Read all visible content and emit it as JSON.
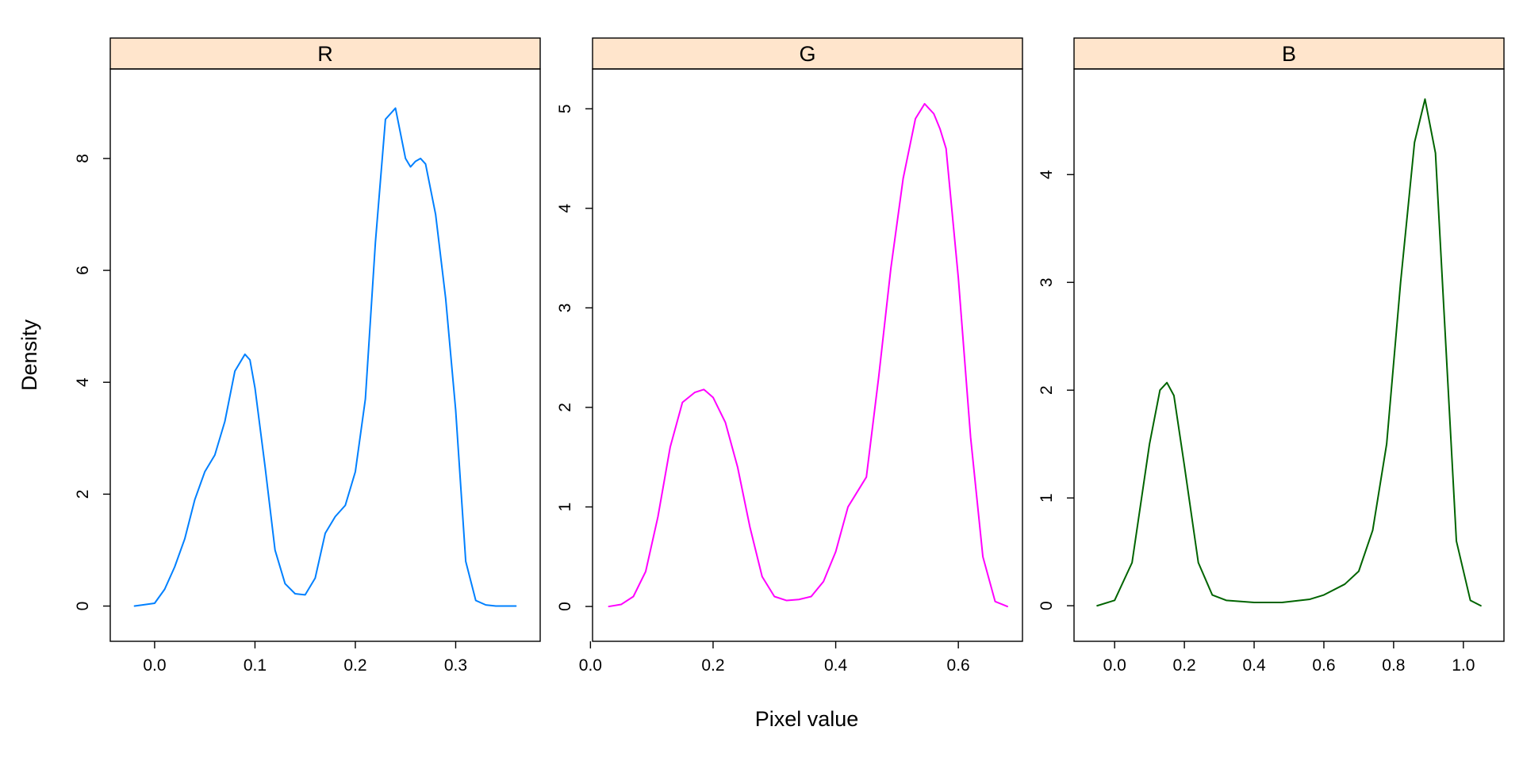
{
  "chart_data": {
    "type": "line",
    "xlabel": "Pixel value",
    "ylabel": "Density",
    "panels": [
      {
        "name": "R",
        "color": "#0080ff",
        "xlim": [
          -0.0442,
          0.3842
        ],
        "ylim": [
          -0.63,
          9.6
        ],
        "xticks": [
          0.0,
          0.1,
          0.2,
          0.3
        ],
        "xtick_labels": [
          "0.0",
          "0.1",
          "0.2",
          "0.3"
        ],
        "yticks": [
          0,
          2,
          4,
          6,
          8
        ],
        "ytick_labels": [
          "0",
          "2",
          "4",
          "6",
          "8"
        ],
        "x": [
          -0.02,
          0.0,
          0.01,
          0.02,
          0.03,
          0.04,
          0.05,
          0.06,
          0.07,
          0.08,
          0.09,
          0.095,
          0.1,
          0.11,
          0.12,
          0.13,
          0.14,
          0.15,
          0.16,
          0.17,
          0.18,
          0.19,
          0.2,
          0.21,
          0.22,
          0.23,
          0.24,
          0.25,
          0.255,
          0.26,
          0.265,
          0.27,
          0.28,
          0.29,
          0.3,
          0.31,
          0.32,
          0.33,
          0.34,
          0.36
        ],
        "y": [
          0.0,
          0.05,
          0.3,
          0.7,
          1.2,
          1.9,
          2.4,
          2.7,
          3.3,
          4.2,
          4.5,
          4.4,
          3.9,
          2.5,
          1.0,
          0.4,
          0.22,
          0.2,
          0.5,
          1.3,
          1.6,
          1.8,
          2.4,
          3.7,
          6.5,
          8.7,
          8.9,
          8.0,
          7.85,
          7.95,
          8.0,
          7.9,
          7.0,
          5.5,
          3.5,
          0.8,
          0.1,
          0.02,
          0.0,
          0.0
        ]
      },
      {
        "name": "G",
        "color": "#ff00ff",
        "xlim": [
          0.0034,
          0.7046
        ],
        "ylim": [
          -0.35,
          5.4
        ],
        "xticks": [
          0.0,
          0.2,
          0.4,
          0.6
        ],
        "xtick_labels": [
          "0.0",
          "0.2",
          "0.4",
          "0.6"
        ],
        "yticks": [
          0,
          1,
          2,
          3,
          4,
          5
        ],
        "ytick_labels": [
          "0",
          "1",
          "2",
          "3",
          "4",
          "5"
        ],
        "x": [
          0.03,
          0.05,
          0.07,
          0.09,
          0.11,
          0.13,
          0.15,
          0.17,
          0.185,
          0.2,
          0.22,
          0.24,
          0.26,
          0.28,
          0.3,
          0.32,
          0.34,
          0.36,
          0.38,
          0.4,
          0.42,
          0.43,
          0.45,
          0.47,
          0.49,
          0.51,
          0.53,
          0.545,
          0.56,
          0.57,
          0.58,
          0.6,
          0.62,
          0.64,
          0.66,
          0.68
        ],
        "y": [
          0.0,
          0.02,
          0.1,
          0.35,
          0.9,
          1.6,
          2.05,
          2.15,
          2.18,
          2.1,
          1.85,
          1.4,
          0.8,
          0.3,
          0.1,
          0.06,
          0.07,
          0.1,
          0.25,
          0.55,
          1.0,
          1.1,
          1.3,
          2.3,
          3.4,
          4.3,
          4.9,
          5.05,
          4.95,
          4.8,
          4.6,
          3.3,
          1.7,
          0.5,
          0.05,
          0.0
        ]
      },
      {
        "name": "B",
        "color": "#006400",
        "xlim": [
          -0.1164,
          1.1164
        ],
        "ylim": [
          -0.33,
          4.98
        ],
        "xticks": [
          0.0,
          0.2,
          0.4,
          0.6,
          0.8,
          1.0
        ],
        "xtick_labels": [
          "0.0",
          "0.2",
          "0.4",
          "0.6",
          "0.8",
          "1.0"
        ],
        "yticks": [
          0,
          1,
          2,
          3,
          4
        ],
        "ytick_labels": [
          "0",
          "1",
          "2",
          "3",
          "4"
        ],
        "x": [
          -0.05,
          0.0,
          0.05,
          0.1,
          0.13,
          0.15,
          0.17,
          0.2,
          0.24,
          0.28,
          0.32,
          0.4,
          0.48,
          0.56,
          0.6,
          0.66,
          0.7,
          0.74,
          0.78,
          0.82,
          0.86,
          0.89,
          0.92,
          0.95,
          0.98,
          1.02,
          1.05
        ],
        "y": [
          0.0,
          0.05,
          0.4,
          1.5,
          2.0,
          2.07,
          1.95,
          1.3,
          0.4,
          0.1,
          0.05,
          0.03,
          0.03,
          0.06,
          0.1,
          0.2,
          0.32,
          0.7,
          1.5,
          3.0,
          4.3,
          4.7,
          4.2,
          2.4,
          0.6,
          0.05,
          0.0
        ]
      }
    ]
  }
}
